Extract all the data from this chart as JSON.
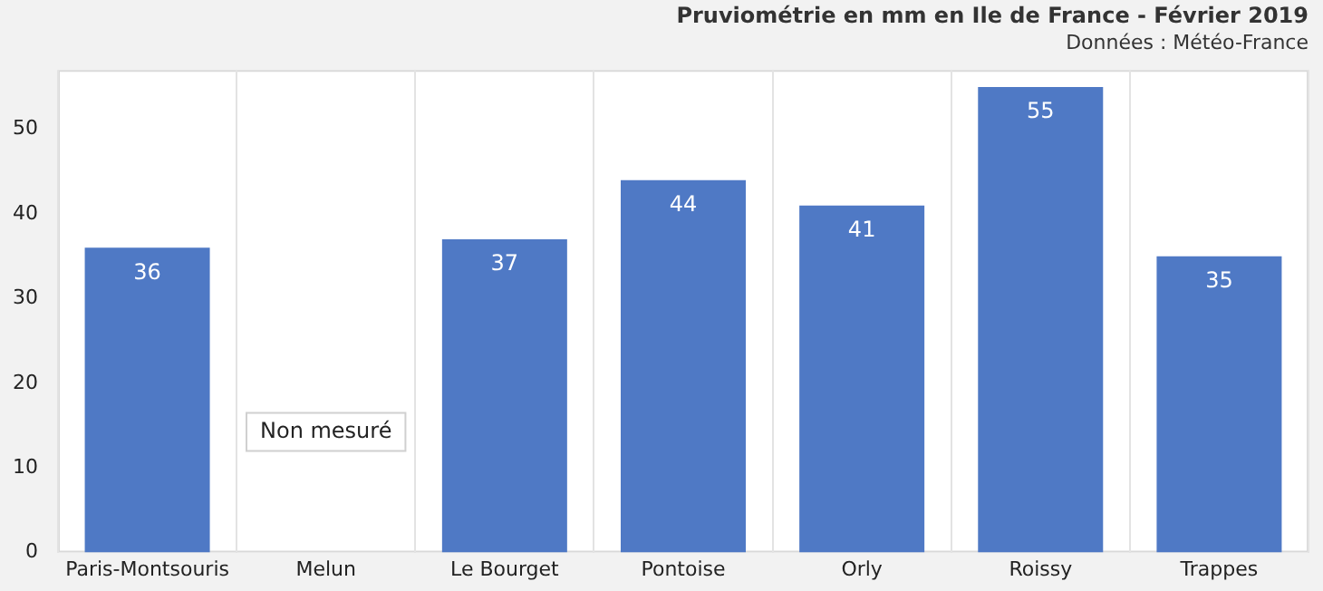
{
  "chart_data": {
    "type": "bar",
    "title": "Pruviométrie en mm en Ile de France - Février 2019",
    "subtitle": "Données : Météo-France",
    "categories": [
      "Paris-Montsouris",
      "Melun",
      "Le Bourget",
      "Pontoise",
      "Orly",
      "Roissy",
      "Trappes"
    ],
    "values": [
      36,
      null,
      37,
      44,
      41,
      55,
      35
    ],
    "color": "#4f79c5",
    "ylim": [
      0,
      57
    ],
    "yticks": [
      0,
      10,
      20,
      30,
      40,
      50
    ],
    "grid": "x",
    "legend": false,
    "data_labels": true,
    "annotations": [
      "Non mesuré"
    ]
  }
}
